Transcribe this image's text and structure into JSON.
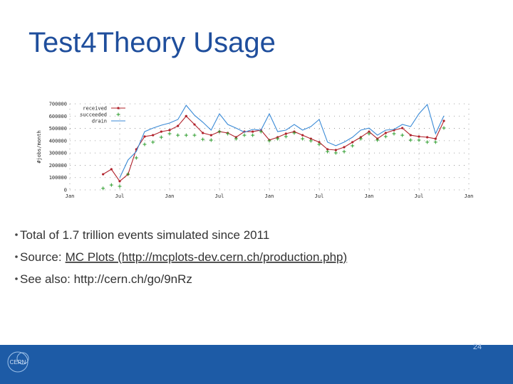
{
  "title": "Test4Theory Usage",
  "chart_data": {
    "type": "line",
    "y_label": "#jobs/month",
    "categories": [
      "Jan",
      null,
      null,
      null,
      null,
      null,
      "Jul",
      null,
      null,
      null,
      null,
      null,
      "Jan",
      null,
      null,
      null,
      null,
      null,
      "Jul",
      null,
      null,
      null,
      null,
      null,
      "Jan",
      null,
      null,
      null,
      null,
      null,
      "Jul",
      null,
      null,
      null,
      null,
      null,
      "Jan",
      null,
      null,
      null,
      null,
      null,
      "Jul",
      null,
      null,
      null,
      null,
      null,
      "Jan"
    ],
    "series": [
      {
        "name": "received",
        "color": "#b0202a",
        "marker": "dot",
        "line": true,
        "values": [
          null,
          null,
          null,
          null,
          127000,
          168000,
          70000,
          127000,
          330000,
          434000,
          445000,
          474000,
          486000,
          520000,
          600000,
          532000,
          463000,
          445000,
          474000,
          463000,
          428000,
          474000,
          474000,
          486000,
          405000,
          428000,
          457000,
          474000,
          445000,
          416000,
          388000,
          330000,
          324000,
          347000,
          388000,
          428000,
          474000,
          416000,
          463000,
          486000,
          503000,
          445000,
          434000,
          428000,
          416000,
          561000,
          null,
          null,
          null
        ]
      },
      {
        "name": "succeeded",
        "color": "#2e9e2e",
        "marker": "plus",
        "line": false,
        "values": [
          null,
          null,
          null,
          null,
          12000,
          40000,
          29000,
          127000,
          260000,
          370000,
          388000,
          428000,
          457000,
          445000,
          445000,
          445000,
          411000,
          405000,
          474000,
          457000,
          416000,
          445000,
          445000,
          474000,
          399000,
          416000,
          434000,
          463000,
          416000,
          399000,
          370000,
          312000,
          301000,
          312000,
          359000,
          416000,
          457000,
          405000,
          434000,
          457000,
          445000,
          405000,
          405000,
          388000,
          388000,
          503000,
          null,
          null,
          null
        ]
      },
      {
        "name": "drain",
        "color": "#3a8ad6",
        "marker": "none",
        "line": true,
        "values": [
          null,
          null,
          null,
          null,
          null,
          null,
          98000,
          243000,
          312000,
          474000,
          503000,
          526000,
          544000,
          573000,
          688000,
          607000,
          550000,
          486000,
          619000,
          532000,
          503000,
          469000,
          492000,
          486000,
          619000,
          474000,
          486000,
          532000,
          486000,
          515000,
          573000,
          388000,
          359000,
          388000,
          428000,
          486000,
          503000,
          445000,
          486000,
          492000,
          532000,
          515000,
          619000,
          694000,
          457000,
          602000,
          null,
          null,
          null
        ]
      }
    ],
    "ylim": [
      0,
      700000
    ],
    "yticks": [
      0,
      100000,
      200000,
      300000,
      400000,
      500000,
      600000,
      700000
    ],
    "grid": true,
    "legend": "top-left"
  },
  "bullets": [
    {
      "text": "Total of 1.7 trillion events simulated since 2011"
    },
    {
      "label": "Source:",
      "link": "MC Plots (http://mcplots-dev.cern.ch/production.php)"
    },
    {
      "text": "See also: http://cern.ch/go/9nRz"
    }
  ],
  "footer": {
    "logo": "CERN",
    "page": "24"
  }
}
